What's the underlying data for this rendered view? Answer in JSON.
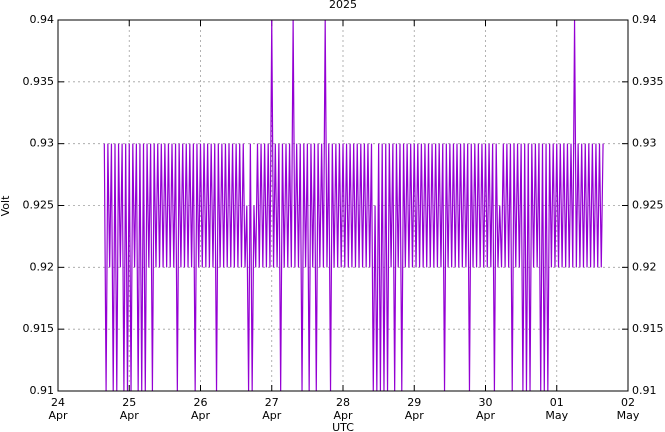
{
  "chart_data": {
    "type": "line",
    "title": "2025",
    "xlabel": "UTC",
    "ylabel": "Volt",
    "color": "#9400d3",
    "grid": true,
    "xlim": [
      24,
      32
    ],
    "xticks": [
      {
        "value": 24,
        "label": "24\nApr"
      },
      {
        "value": 25,
        "label": "25\nApr"
      },
      {
        "value": 26,
        "label": "26\nApr"
      },
      {
        "value": 27,
        "label": "27\nApr"
      },
      {
        "value": 28,
        "label": "28\nApr"
      },
      {
        "value": 29,
        "label": "29\nApr"
      },
      {
        "value": 30,
        "label": "30\nApr"
      },
      {
        "value": 31,
        "label": "01\nMay"
      },
      {
        "value": 32,
        "label": "02\nMay"
      }
    ],
    "ylim": [
      0.91,
      0.94
    ],
    "yticks": [
      0.91,
      0.915,
      0.92,
      0.925,
      0.93,
      0.935,
      0.94
    ],
    "x": [
      24.65,
      24.675,
      24.7,
      24.725,
      24.75,
      24.775,
      24.8,
      24.825,
      24.85,
      24.875,
      24.9,
      24.925,
      24.95,
      24.975,
      25,
      25.025,
      25.05,
      25.075,
      25.1,
      25.125,
      25.15,
      25.175,
      25.2,
      25.225,
      25.25,
      25.275,
      25.3,
      25.325,
      25.35,
      25.375,
      25.4,
      25.425,
      25.45,
      25.475,
      25.5,
      25.525,
      25.55,
      25.575,
      25.6,
      25.625,
      25.65,
      25.675,
      25.7,
      25.725,
      25.75,
      25.775,
      25.8,
      25.825,
      25.85,
      25.875,
      25.9,
      25.925,
      25.95,
      25.975,
      26,
      26.025,
      26.05,
      26.075,
      26.1,
      26.125,
      26.15,
      26.175,
      26.2,
      26.225,
      26.25,
      26.275,
      26.3,
      26.325,
      26.35,
      26.375,
      26.4,
      26.425,
      26.45,
      26.475,
      26.5,
      26.525,
      26.55,
      26.575,
      26.6,
      26.625,
      26.65,
      26.675,
      26.7,
      26.725,
      26.75,
      26.775,
      26.8,
      26.825,
      26.85,
      26.875,
      26.9,
      26.925,
      26.95,
      26.975,
      27,
      27.025,
      27.05,
      27.075,
      27.1,
      27.125,
      27.15,
      27.175,
      27.2,
      27.225,
      27.25,
      27.275,
      27.3,
      27.325,
      27.35,
      27.375,
      27.4,
      27.425,
      27.45,
      27.475,
      27.5,
      27.525,
      27.55,
      27.575,
      27.6,
      27.625,
      27.65,
      27.675,
      27.7,
      27.725,
      27.75,
      27.775,
      27.8,
      27.825,
      27.85,
      27.875,
      27.9,
      27.925,
      27.95,
      27.975,
      28,
      28.025,
      28.05,
      28.075,
      28.1,
      28.125,
      28.15,
      28.175,
      28.2,
      28.225,
      28.25,
      28.275,
      28.3,
      28.325,
      28.35,
      28.375,
      28.4,
      28.425,
      28.45,
      28.475,
      28.5,
      28.525,
      28.55,
      28.575,
      28.6,
      28.625,
      28.65,
      28.675,
      28.7,
      28.725,
      28.75,
      28.775,
      28.8,
      28.825,
      28.85,
      28.875,
      28.9,
      28.925,
      28.95,
      28.975,
      29,
      29.025,
      29.05,
      29.075,
      29.1,
      29.125,
      29.15,
      29.175,
      29.2,
      29.225,
      29.25,
      29.275,
      29.3,
      29.325,
      29.35,
      29.375,
      29.4,
      29.425,
      29.45,
      29.475,
      29.5,
      29.525,
      29.55,
      29.575,
      29.6,
      29.625,
      29.65,
      29.675,
      29.7,
      29.725,
      29.75,
      29.775,
      29.8,
      29.825,
      29.85,
      29.875,
      29.9,
      29.925,
      29.95,
      29.975,
      30,
      30.025,
      30.05,
      30.075,
      30.1,
      30.125,
      30.15,
      30.175,
      30.2,
      30.225,
      30.25,
      30.275,
      30.3,
      30.325,
      30.35,
      30.375,
      30.4,
      30.425,
      30.45,
      30.475,
      30.5,
      30.525,
      30.55,
      30.575,
      30.6,
      30.625,
      30.65,
      30.675,
      30.7,
      30.725,
      30.75,
      30.775,
      30.8,
      30.825,
      30.85,
      30.875,
      30.9,
      30.925,
      30.95,
      30.975,
      31,
      31.025,
      31.05,
      31.075,
      31.1,
      31.125,
      31.15,
      31.175,
      31.2,
      31.225,
      31.25,
      31.275,
      31.3,
      31.325,
      31.35,
      31.375,
      31.4,
      31.425,
      31.45,
      31.475,
      31.5,
      31.525,
      31.55,
      31.575,
      31.6,
      31.625,
      31.65
    ],
    "values": [
      0.93,
      0.91,
      0.93,
      0.92,
      0.93,
      0.91,
      0.93,
      0.91,
      0.93,
      0.92,
      0.93,
      0.91,
      0.93,
      0.91,
      0.93,
      0.91,
      0.93,
      0.92,
      0.93,
      0.91,
      0.93,
      0.91,
      0.93,
      0.91,
      0.93,
      0.92,
      0.93,
      0.91,
      0.93,
      0.92,
      0.93,
      0.92,
      0.93,
      0.92,
      0.93,
      0.92,
      0.93,
      0.92,
      0.93,
      0.92,
      0.93,
      0.91,
      0.93,
      0.92,
      0.93,
      0.92,
      0.93,
      0.92,
      0.93,
      0.92,
      0.93,
      0.91,
      0.93,
      0.92,
      0.93,
      0.92,
      0.93,
      0.92,
      0.93,
      0.92,
      0.93,
      0.92,
      0.93,
      0.91,
      0.93,
      0.92,
      0.93,
      0.92,
      0.93,
      0.92,
      0.93,
      0.92,
      0.93,
      0.92,
      0.93,
      0.92,
      0.93,
      0.92,
      0.93,
      0.92,
      0.925,
      0.91,
      0.93,
      0.91,
      0.925,
      0.92,
      0.93,
      0.92,
      0.93,
      0.92,
      0.93,
      0.92,
      0.93,
      0.92,
      0.94,
      0.92,
      0.93,
      0.92,
      0.93,
      0.91,
      0.93,
      0.92,
      0.93,
      0.92,
      0.93,
      0.92,
      0.94,
      0.92,
      0.93,
      0.92,
      0.93,
      0.91,
      0.93,
      0.92,
      0.93,
      0.91,
      0.93,
      0.92,
      0.93,
      0.91,
      0.93,
      0.92,
      0.93,
      0.92,
      0.94,
      0.92,
      0.93,
      0.91,
      0.93,
      0.92,
      0.93,
      0.92,
      0.93,
      0.92,
      0.93,
      0.92,
      0.93,
      0.92,
      0.93,
      0.92,
      0.93,
      0.92,
      0.93,
      0.92,
      0.93,
      0.92,
      0.93,
      0.92,
      0.93,
      0.92,
      0.93,
      0.91,
      0.925,
      0.91,
      0.93,
      0.91,
      0.93,
      0.91,
      0.93,
      0.91,
      0.93,
      0.92,
      0.93,
      0.91,
      0.93,
      0.92,
      0.93,
      0.91,
      0.93,
      0.92,
      0.93,
      0.92,
      0.93,
      0.92,
      0.93,
      0.92,
      0.93,
      0.92,
      0.93,
      0.92,
      0.93,
      0.92,
      0.93,
      0.92,
      0.93,
      0.92,
      0.93,
      0.92,
      0.93,
      0.92,
      0.93,
      0.91,
      0.93,
      0.92,
      0.93,
      0.92,
      0.93,
      0.92,
      0.93,
      0.92,
      0.93,
      0.92,
      0.93,
      0.92,
      0.93,
      0.91,
      0.93,
      0.92,
      0.93,
      0.92,
      0.93,
      0.92,
      0.93,
      0.92,
      0.93,
      0.92,
      0.93,
      0.92,
      0.93,
      0.91,
      0.93,
      0.92,
      0.925,
      0.92,
      0.93,
      0.92,
      0.93,
      0.92,
      0.93,
      0.91,
      0.93,
      0.92,
      0.93,
      0.92,
      0.93,
      0.91,
      0.93,
      0.91,
      0.93,
      0.91,
      0.93,
      0.92,
      0.93,
      0.92,
      0.93,
      0.91,
      0.93,
      0.91,
      0.93,
      0.91,
      0.93,
      0.92,
      0.93,
      0.92,
      0.93,
      0.92,
      0.93,
      0.92,
      0.93,
      0.92,
      0.93,
      0.92,
      0.93,
      0.92,
      0.94,
      0.92,
      0.93,
      0.92,
      0.93,
      0.92,
      0.93,
      0.92,
      0.93,
      0.92,
      0.93,
      0.92,
      0.93,
      0.92,
      0.93,
      0.92,
      0.93
    ]
  }
}
